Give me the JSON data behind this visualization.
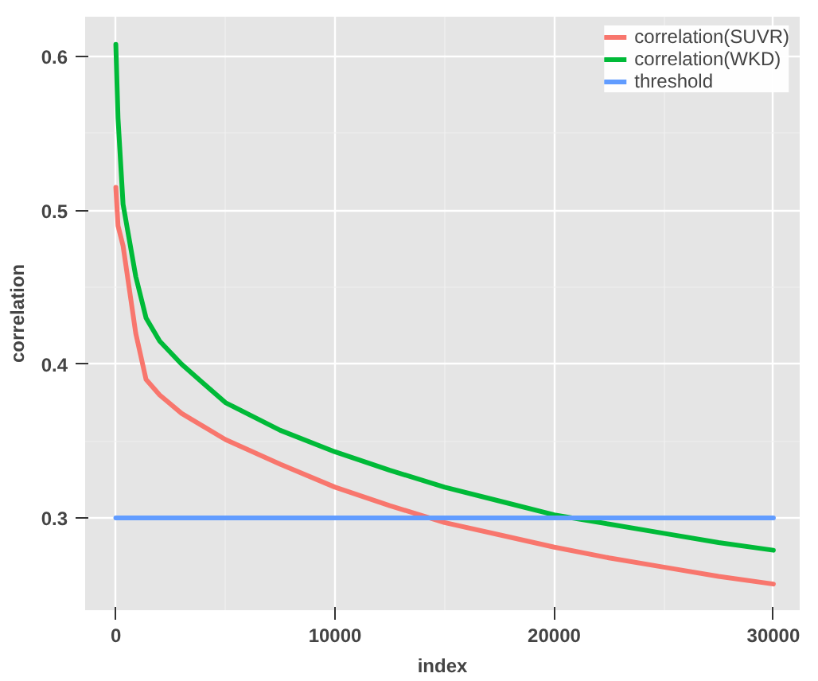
{
  "chart_data": {
    "type": "line",
    "xlabel": "index",
    "ylabel": "correlation",
    "xlim": [
      -1400,
      31200
    ],
    "ylim": [
      0.24,
      0.626
    ],
    "xticks": [
      0,
      10000,
      20000,
      30000
    ],
    "yticks": [
      0.3,
      0.4,
      0.5,
      0.6
    ],
    "grid": true,
    "legend": "top right",
    "line_style": "solid",
    "marker": "none",
    "series": [
      {
        "name": "correlation(SUVR)",
        "color": "#f8766d",
        "x": [
          0,
          100,
          330,
          910,
          1380,
          2000,
          3000,
          5000,
          7500,
          10000,
          12500,
          15000,
          17500,
          20000,
          22500,
          25000,
          27500,
          30000
        ],
        "values": [
          0.515,
          0.49,
          0.477,
          0.42,
          0.39,
          0.38,
          0.368,
          0.351,
          0.335,
          0.32,
          0.308,
          0.297,
          0.289,
          0.281,
          0.274,
          0.268,
          0.262,
          0.257
        ]
      },
      {
        "name": "correlation(WKD)",
        "color": "#00ba38",
        "x": [
          0,
          100,
          330,
          910,
          1380,
          2000,
          3000,
          5000,
          7500,
          10000,
          12500,
          15000,
          17500,
          20000,
          22500,
          25000,
          27500,
          30000
        ],
        "values": [
          0.608,
          0.56,
          0.504,
          0.457,
          0.43,
          0.415,
          0.4,
          0.375,
          0.357,
          0.343,
          0.331,
          0.32,
          0.311,
          0.302,
          0.296,
          0.29,
          0.284,
          0.279
        ]
      },
      {
        "name": "threshold",
        "color": "#619cff",
        "x": [
          0,
          30000
        ],
        "values": [
          0.3,
          0.3
        ]
      }
    ]
  }
}
